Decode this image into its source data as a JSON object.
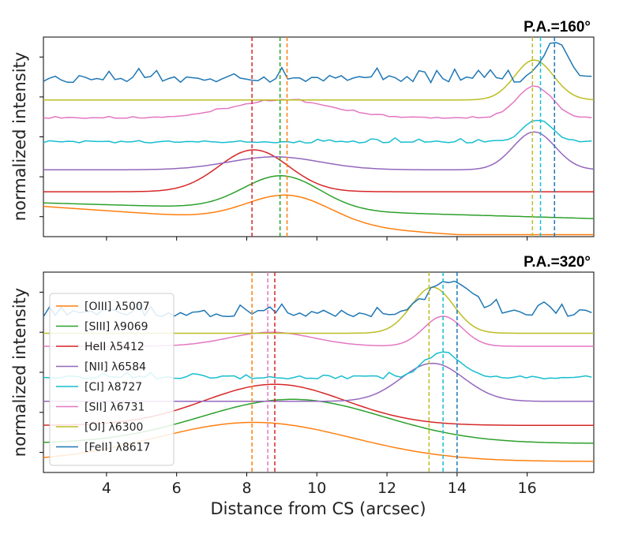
{
  "chart_data": {
    "type": "line",
    "xlabel": "Distance from CS (arcsec)",
    "ylabel": "normalized intensity",
    "xlim": [
      2.2,
      17.9
    ],
    "xticks": [
      4,
      6,
      8,
      10,
      12,
      14,
      16
    ],
    "xtick_labels": [
      "4",
      "6",
      "8",
      "10",
      "12",
      "14",
      "16"
    ],
    "legend_location": "lower-left of bottom panel",
    "series_styles": [
      {
        "name": "[OIII] λ5007",
        "color": "#ff7f0e"
      },
      {
        "name": "[SIII] λ9069",
        "color": "#2ca02c"
      },
      {
        "name": "HeII λ5412",
        "color": "#d62728"
      },
      {
        "name": "[NII] λ6584",
        "color": "#9467bd"
      },
      {
        "name": "[CI] λ8727",
        "color": "#17becf"
      },
      {
        "name": "[SII] λ6731",
        "color": "#e377c2"
      },
      {
        "name": "[OI] λ6300",
        "color": "#bcbd22"
      },
      {
        "name": "[FeII] λ8617",
        "color": "#1f77b4"
      }
    ],
    "panels": [
      {
        "title": "P.A.=160°",
        "ylim": [
          0,
          10
        ],
        "yticks": [
          1,
          2,
          3,
          4,
          5,
          6,
          7,
          8,
          9
        ],
        "vlines": [
          {
            "x": 8.15,
            "color": "#d62728"
          },
          {
            "x": 8.95,
            "color": "#2ca02c"
          },
          {
            "x": 9.15,
            "color": "#ff7f0e"
          },
          {
            "x": 16.15,
            "color": "#bcbd22"
          },
          {
            "x": 16.38,
            "color": "#17becf"
          },
          {
            "x": 16.78,
            "color": "#1f77b4"
          }
        ],
        "series": [
          {
            "name": "[OIII] λ5007",
            "baseline": 0.7,
            "peaks": [
              [
                9.2,
                1.4,
                1.2
              ]
            ],
            "slope": 0.12,
            "noise": 0.0
          },
          {
            "name": "[SIII] λ9069",
            "baseline": 1.35,
            "peaks": [
              [
                9.0,
                1.7,
                1.1
              ]
            ],
            "slope": 0.05,
            "noise": 0.0
          },
          {
            "name": "HeII λ5412",
            "baseline": 2.25,
            "peaks": [
              [
                8.2,
                2.1,
                1.0
              ]
            ],
            "slope": 0.0,
            "noise": 0.0
          },
          {
            "name": "[NII] λ6584",
            "baseline": 3.35,
            "peaks": [
              [
                8.8,
                0.65,
                1.3
              ],
              [
                16.2,
                1.9,
                0.6
              ]
            ],
            "slope": 0.0,
            "noise": 0.0
          },
          {
            "name": "[CI] λ8727",
            "baseline": 4.75,
            "peaks": [
              [
                16.3,
                1.1,
                0.4
              ]
            ],
            "slope": 0.0,
            "noise": 0.12
          },
          {
            "name": "[SII] λ6731",
            "baseline": 5.95,
            "peaks": [
              [
                9.0,
                0.9,
                1.4
              ],
              [
                16.2,
                1.6,
                0.5
              ]
            ],
            "slope": 0.0,
            "noise": 0.05
          },
          {
            "name": "[OI] λ6300",
            "baseline": 6.85,
            "peaks": [
              [
                16.2,
                2.0,
                0.55
              ]
            ],
            "slope": 0.0,
            "noise": 0.0
          },
          {
            "name": "[FeII] λ8617",
            "baseline": 7.9,
            "peaks": [
              [
                16.8,
                1.9,
                0.35
              ]
            ],
            "slope": 0.0,
            "noise": 0.35
          }
        ]
      },
      {
        "title": "P.A.=320°",
        "ylim": [
          0,
          10
        ],
        "yticks": [
          1,
          2,
          3,
          4,
          5,
          6,
          7,
          8,
          9
        ],
        "vlines": [
          {
            "x": 8.15,
            "color": "#ff7f0e"
          },
          {
            "x": 8.6,
            "color": "#e377c2"
          },
          {
            "x": 8.8,
            "color": "#d62728"
          },
          {
            "x": 13.2,
            "color": "#bcbd22"
          },
          {
            "x": 13.6,
            "color": "#17becf"
          },
          {
            "x": 14.0,
            "color": "#1f77b4"
          }
        ],
        "series": [
          {
            "name": "[OIII] λ5007",
            "baseline": 0.55,
            "peaks": [
              [
                8.2,
                1.95,
                2.8
              ]
            ],
            "slope": 0.0,
            "noise": 0.0
          },
          {
            "name": "[SIII] λ9069",
            "baseline": 1.45,
            "peaks": [
              [
                9.3,
                2.2,
                2.6
              ]
            ],
            "slope": 0.0,
            "noise": 0.0
          },
          {
            "name": "HeII λ5412",
            "baseline": 2.35,
            "peaks": [
              [
                8.8,
                2.05,
                2.0
              ]
            ],
            "slope": 0.0,
            "noise": 0.0
          },
          {
            "name": "[NII] λ6584",
            "baseline": 3.55,
            "peaks": [
              [
                13.3,
                1.9,
                0.9
              ]
            ],
            "slope": 0.0,
            "noise": 0.0
          },
          {
            "name": "[CI] λ8727",
            "baseline": 4.75,
            "peaks": [
              [
                13.6,
                1.3,
                0.5
              ]
            ],
            "slope": 0.0,
            "noise": 0.15
          },
          {
            "name": "[SII] λ6731",
            "baseline": 6.3,
            "peaks": [
              [
                8.7,
                0.7,
                1.2
              ],
              [
                13.6,
                1.5,
                0.55
              ]
            ],
            "slope": 0.0,
            "noise": 0.0
          },
          {
            "name": "[OI] λ6300",
            "baseline": 6.95,
            "peaks": [
              [
                13.3,
                2.3,
                0.6
              ]
            ],
            "slope": 0.0,
            "noise": 0.0
          },
          {
            "name": "[FeII] λ8617",
            "baseline": 7.95,
            "peaks": [
              [
                13.8,
                1.7,
                0.6
              ]
            ],
            "slope": 0.0,
            "noise": 0.35
          }
        ]
      }
    ]
  }
}
